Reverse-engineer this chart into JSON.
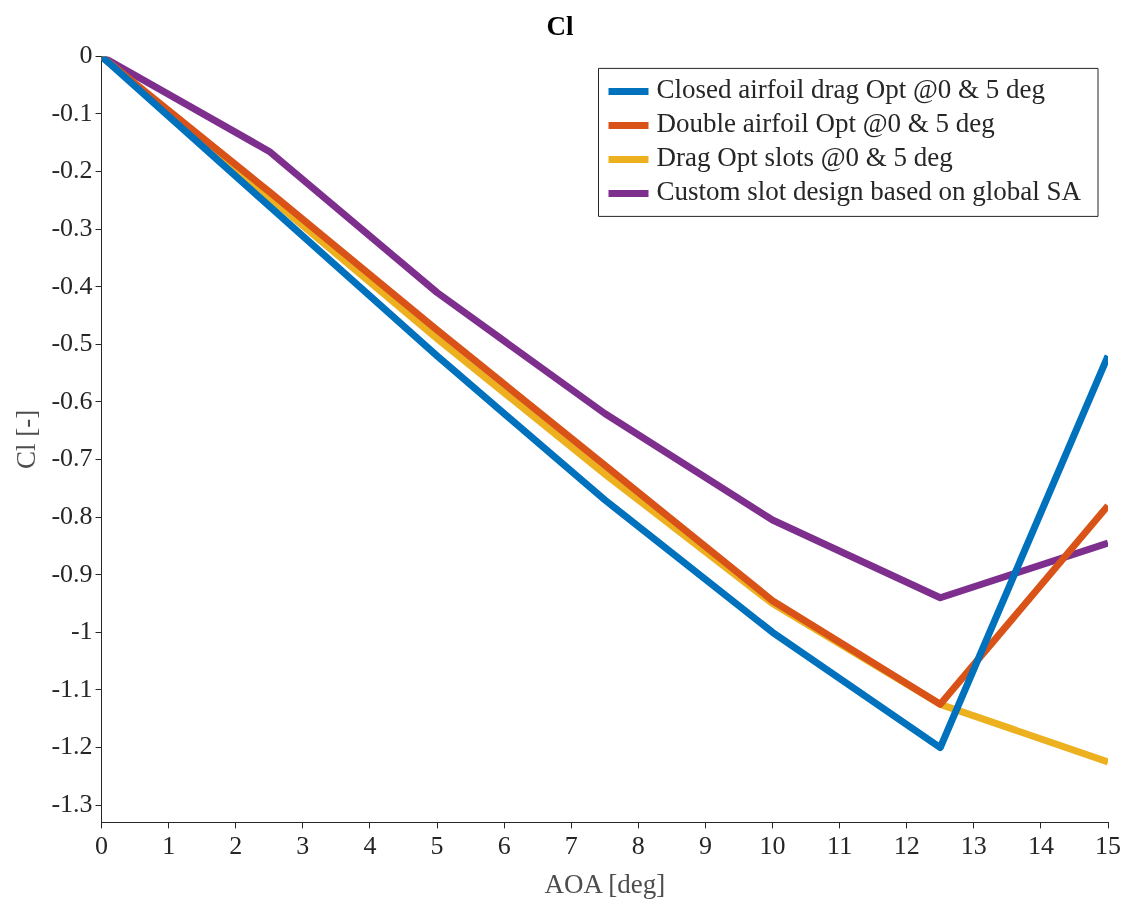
{
  "chart_data": {
    "type": "line",
    "title": "Cl",
    "xlabel": "AOA [deg]",
    "ylabel": "Cl [-]",
    "x": [
      0,
      2.5,
      5,
      7.5,
      10,
      12.5,
      15
    ],
    "series": [
      {
        "name": "Closed airfoil drag Opt @0 & 5 deg",
        "color": "#0072bd",
        "values": [
          0,
          -0.26,
          -0.52,
          -0.77,
          -1.0,
          -1.2,
          -0.52
        ]
      },
      {
        "name": "Double airfoil Opt @0 & 5 deg",
        "color": "#d95319",
        "values": [
          0,
          -0.235,
          -0.475,
          -0.71,
          -0.945,
          -1.125,
          -0.78
        ]
      },
      {
        "name": "Drag Opt slots @0 & 5 deg",
        "color": "#edb120",
        "values": [
          0,
          -0.245,
          -0.49,
          -0.725,
          -0.95,
          -1.125,
          -1.225
        ]
      },
      {
        "name": "Custom slot design based on global SA",
        "color": "#7e2f8e",
        "values": [
          0,
          -0.165,
          -0.41,
          -0.62,
          -0.805,
          -0.94,
          -0.845
        ]
      }
    ],
    "xlim": [
      0,
      15
    ],
    "xticks": [
      0,
      1,
      2,
      3,
      4,
      5,
      6,
      7,
      8,
      9,
      10,
      11,
      12,
      13,
      14,
      15
    ],
    "ylim": [
      -1.33,
      0
    ],
    "yticks": [
      0,
      -0.1,
      -0.2,
      -0.3,
      -0.4,
      -0.5,
      -0.6,
      -0.7,
      -0.8,
      -0.9,
      -1,
      -1.1,
      -1.2,
      -1.3
    ],
    "grid": false,
    "legend": "top right",
    "marker": "none",
    "line_style": "solid"
  }
}
